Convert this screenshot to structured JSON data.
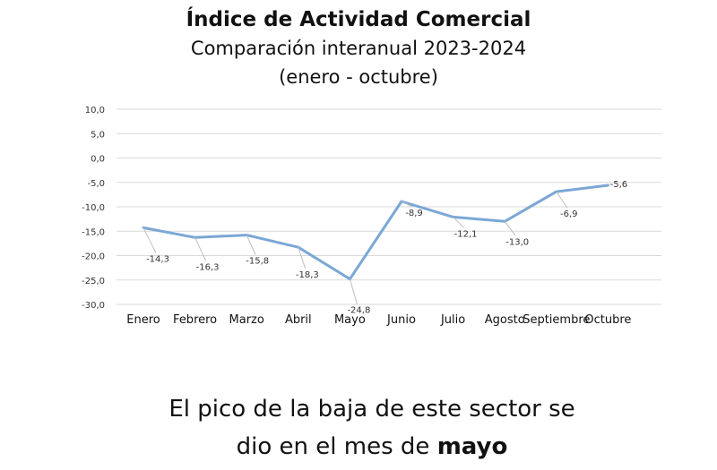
{
  "chart_data": {
    "type": "line",
    "title": "Índice de Actividad Comercial",
    "subtitle": "Comparación interanual 2023-2024",
    "period": "(enero - octubre)",
    "categories": [
      "Enero",
      "Febrero",
      "Marzo",
      "Abril",
      "Mayo",
      "Junio",
      "Julio",
      "Agosto",
      "Septiembre",
      "Octubre"
    ],
    "series": [
      {
        "values": [
          -14.3,
          -16.3,
          -15.8,
          -18.3,
          -24.8,
          -8.9,
          -12.1,
          -13.0,
          -6.9,
          -5.6
        ],
        "labels": [
          "-14,3",
          "-16,3",
          "-15,8",
          "-18,3",
          "-24,8",
          "-8,9",
          "-12,1",
          "-13,0",
          "-6,9",
          "-5,6"
        ],
        "color": "#7aa7d6"
      }
    ],
    "ylim": [
      -30,
      10
    ],
    "yticks": [
      10,
      5,
      0,
      -5,
      -10,
      -15,
      -20,
      -25,
      -30
    ],
    "ytick_labels": [
      "10,0",
      "5,0",
      "0,0",
      "-5,0",
      "-10,0",
      "-15,0",
      "-20,0",
      "-25,0",
      "-30,0"
    ],
    "grid": true,
    "gridColor": "#d9d9d9",
    "xlabel": "",
    "ylabel": ""
  },
  "caption": {
    "line1": "El pico de la baja de este sector se",
    "line2_prefix": "dio en el mes de ",
    "line2_bold": "mayo"
  }
}
